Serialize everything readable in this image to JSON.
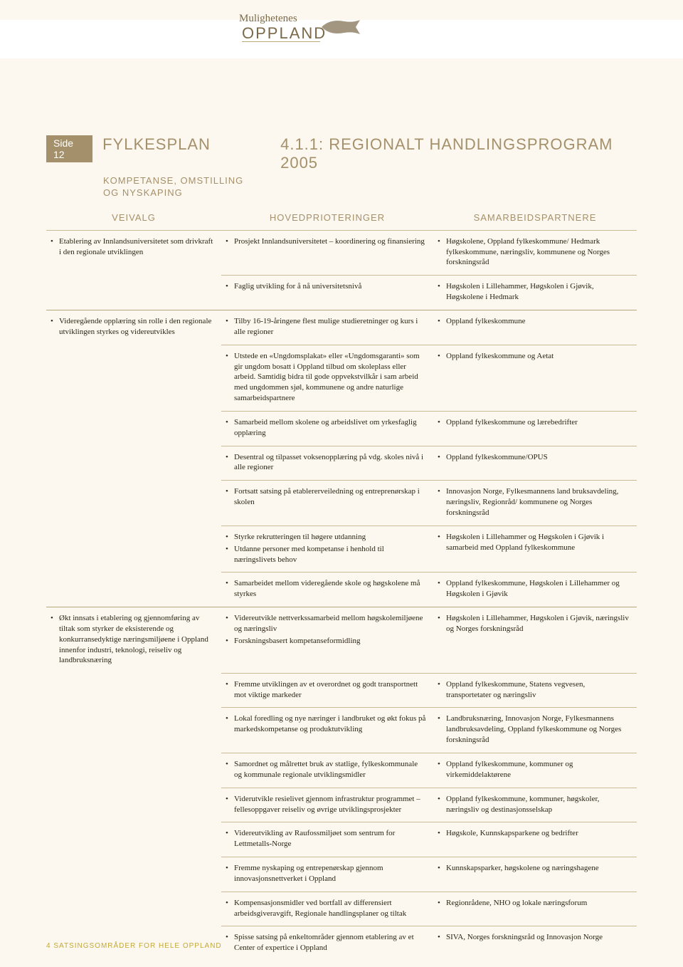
{
  "header": {
    "logo_cursive": "Mulighetenes",
    "logo_block": "OPPLAND"
  },
  "titles": {
    "side_badge": "Side 12",
    "fylkesplan": "FYLKESPLAN",
    "section_number_title": "4.1.1: REGIONALT HANDLINGSPROGRAM 2005",
    "subtitle_line1": "KOMPETANSE, OMSTILLING",
    "subtitle_line2": "OG NYSKAPING"
  },
  "columns": {
    "veivalg": "VEIVALG",
    "hoved": "HOVEDPRIOTERINGER",
    "sam": "SAMARBEIDSPARTNERE"
  },
  "footer": "4 SATSINGSOMRÅDER FOR HELE OPPLAND",
  "rows": [
    {
      "v": "Etablering av Innlandsuniversitetet som drivkraft i den regionale utviklingen",
      "h": "Prosjekt Innlandsuniversitetet – koordinering og finansiering",
      "s": "Høgskolene, Oppland fylkeskommune/ Hedmark fylkeskommune, næringsliv, kommunene og Norges forskningsråd"
    },
    {
      "v": "",
      "h": "Faglig utvikling for å nå universitetsnivå",
      "s": "Høgskolen i Lillehammer, Høgskolen i Gjøvik, Høgskolene i Hedmark"
    },
    {
      "v": "Videregående opplæring sin rolle i den regionale utviklingen styrkes og videreutvikles",
      "h": "Tilby 16-19-åringene flest mulige studieretninger og kurs i alle regioner",
      "s": "Oppland fylkeskommune"
    },
    {
      "v": "",
      "h": "Utstede en «Ungdomsplakat» eller «Ungdomsgaranti» som gir ungdom bosatt i Oppland tilbud om skoleplass eller arbeid. Samtidig bidra til gode oppvekstvilkår i sam arbeid med ungdommen sjøl, kommunene og andre naturlige samarbeidspartnere",
      "s": "Oppland fylkeskommune og Aetat"
    },
    {
      "v": "",
      "h": "Samarbeid mellom skolene og arbeidslivet om yrkesfaglig opplæring",
      "s": "Oppland fylkeskommune og lærebedrifter"
    },
    {
      "v": "",
      "h": "Desentral og tilpasset voksenopplæring på vdg. skoles nivå i alle regioner",
      "s": "Oppland fylkeskommune/OPUS"
    },
    {
      "v": "",
      "h": "Fortsatt satsing på etablererveiledning og entreprenørskap i skolen",
      "s": "Innovasjon Norge, Fylkesmannens land bruksavdeling, næringsliv, Regionråd/ kommunene og Norges forskningsråd"
    },
    {
      "v": "",
      "h": [
        "Styrke rekrutteringen til høgere utdanning",
        "Utdanne personer med kompetanse i henhold til næringslivets behov"
      ],
      "s": "Høgskolen i Lillehammer og Høgskolen i Gjøvik i samarbeid med Oppland fylkeskommune"
    },
    {
      "v": "",
      "h": "Samarbeidet mellom videregående skole og høgskolene må styrkes",
      "s": "Oppland fylkeskommune, Høgskolen i Lillehammer og Høgskolen i Gjøvik"
    },
    {
      "v": "Økt innsats i etablering og gjennomføring av tiltak som styrker de eksisterende og konkurransedyktige næringsmiljøene i Oppland innenfor industri, teknologi, reiseliv og landbruksnæring",
      "h": [
        "Videreutvikle nettverkssamarbeid mellom høgskolemiljøene og næringsliv",
        "Forskningsbasert kompetanseformidling"
      ],
      "s": "Høgskolen i Lillehammer, Høgskolen i Gjøvik, næringsliv og Norges forskningsråd"
    },
    {
      "v": "",
      "h": "Fremme utviklingen av et overordnet og godt transportnett mot viktige markeder",
      "s": "Oppland fylkeskommune, Statens vegvesen, transportetater og næringsliv"
    },
    {
      "v": "",
      "h": "Lokal foredling og nye næringer i landbruket og økt fokus på markedskompetanse og produktutvikling",
      "s": "Landbruksnæring, Innovasjon Norge, Fylkesmannens landbruksavdeling, Oppland fylkeskommune og Norges forskningsråd"
    },
    {
      "v": "",
      "h": "Samordnet og målrettet bruk av statlige, fylkeskommunale og kommunale regionale utviklingsmidler",
      "s": "Oppland fylkeskommune, kommuner og virkemiddelaktørene"
    },
    {
      "v": "",
      "h": "Viderutvikle resielivet gjennom infrastruktur programmet – fellesoppgaver reiseliv og øvrige utviklingsprosjekter",
      "s": "Oppland fylkeskommune, kommuner, høgskoler, næringsliv og destinasjonsselskap"
    },
    {
      "v": "",
      "h": "Videreutvikling av Raufossmiljøet som sentrum for Lettmetalls-Norge",
      "s": "Høgskole, Kunnskapsparkene og bedrifter"
    },
    {
      "v": "",
      "h": "Fremme nyskaping og entrepenørskap gjennom innovasjonsnettverket i Oppland",
      "s": "Kunnskapsparker, høgskolene og næringshagene"
    },
    {
      "v": "",
      "h": "Kompensasjonsmidler ved bortfall av differensiert arbeidsgiveravgift, Regionale handlingsplaner og tiltak",
      "s": "Regionrådene, NHO og lokale næringsforum"
    },
    {
      "v": "",
      "h": "Spisse satsing på enkeltområder gjennom etablering av et Center of expertice i Oppland",
      "s": "SIVA, Norges forskningsråd og Innovasjon Norge"
    }
  ]
}
